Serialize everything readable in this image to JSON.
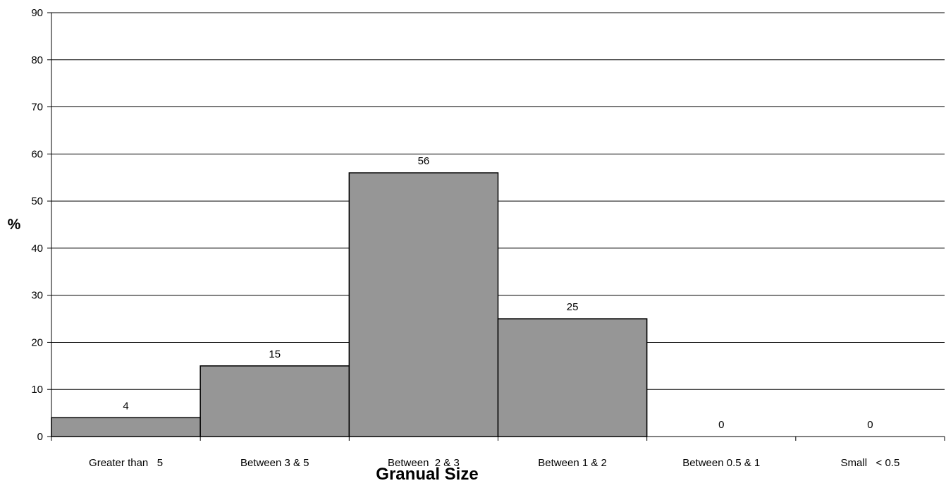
{
  "chart_data": {
    "type": "bar",
    "categories": [
      "Greater than   5",
      "Between 3 & 5",
      "Between  2 & 3",
      "Between 1 & 2",
      "Between 0.5 & 1",
      "Small   < 0.5"
    ],
    "values": [
      4,
      15,
      56,
      25,
      0,
      0
    ],
    "data_labels": [
      "4",
      "15",
      "56",
      "25",
      "0",
      "0"
    ],
    "title": "",
    "xlabel": "Granual Size",
    "ylabel": "%",
    "ylim": [
      0,
      90
    ],
    "yticks": [
      0,
      10,
      20,
      30,
      40,
      50,
      60,
      70,
      80,
      90
    ],
    "grid": true,
    "legend": "none",
    "bar_color": "#969696",
    "bar_edge_color": "#000000",
    "grid_color": "#000000"
  }
}
